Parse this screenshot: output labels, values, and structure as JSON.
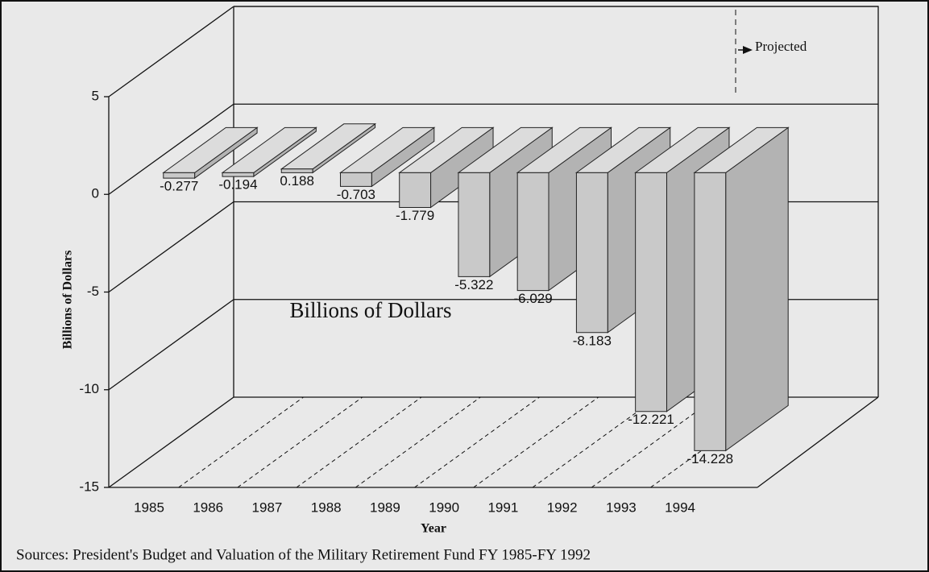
{
  "chart_data": {
    "type": "bar3d",
    "categories": [
      "1985",
      "1986",
      "1987",
      "1988",
      "1989",
      "1990",
      "1991",
      "1992",
      "1993",
      "1994"
    ],
    "values": [
      -0.277,
      -0.194,
      0.188,
      -0.703,
      -1.779,
      -5.322,
      -6.029,
      -8.183,
      -12.221,
      -14.228
    ],
    "ylim": [
      -15,
      5
    ],
    "yticks": [
      -15,
      -10,
      -5,
      0,
      5
    ],
    "y_label": "Billions of Dollars",
    "x_label": "Year",
    "annotation": "Billions of Dollars",
    "projected_label": "Projected",
    "source": "Sources:  President's Budget and Valuation of the Military Retirement Fund FY 1985-FY 1992",
    "color": "#c9c9c9",
    "grid": true
  }
}
